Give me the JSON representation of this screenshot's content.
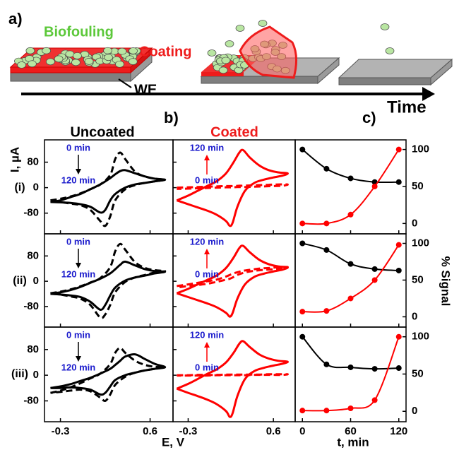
{
  "figure": {
    "panel_a": "a)",
    "panel_b": "b)",
    "panel_c": "c)",
    "biofouling": "Biofouling",
    "coating": "Coating",
    "we": "WE",
    "time": "Time",
    "col_uncoated": "Uncoated",
    "col_coated": "Coated",
    "rows": [
      "(i)",
      "(ii)",
      "(iii)"
    ],
    "y_label_cv": "I, µA",
    "x_label_cv": "E, V",
    "y_label_signal": "% Signal",
    "x_label_signal": "t, min"
  },
  "chart_data": [
    {
      "type": "line",
      "xlim": [
        -0.46,
        0.83
      ],
      "xticks": [
        -0.3,
        0.6
      ],
      "ylim": [
        -145,
        150
      ],
      "yticks": [
        80,
        0,
        -80
      ],
      "annotations": [
        "0 min",
        "120 min"
      ],
      "annotation_color": "#1a1acc",
      "x": [
        -0.4,
        -0.3,
        -0.2,
        -0.1,
        0,
        0.1,
        0.2,
        0.25,
        0.3,
        0.35,
        0.45,
        0.55,
        0.65,
        0.75,
        0.65,
        0.55,
        0.45,
        0.35,
        0.25,
        0.2,
        0.15,
        0.1,
        0,
        -0.1,
        -0.2,
        -0.3,
        -0.4
      ],
      "series": [
        {
          "color": "#000000",
          "style": "solid",
          "values": [
            -45,
            -40,
            -30,
            -20,
            -5,
            10,
            30,
            42,
            52,
            55,
            45,
            35,
            28,
            25,
            20,
            15,
            10,
            0,
            -20,
            -40,
            -70,
            -78,
            -60,
            -52,
            -48,
            -46,
            -45
          ]
        },
        {
          "color": "#000000",
          "style": "dashed",
          "values": [
            -40,
            -35,
            -28,
            -18,
            -5,
            10,
            40,
            90,
            110,
            90,
            50,
            35,
            28,
            25,
            20,
            15,
            8,
            -5,
            -40,
            -90,
            -120,
            -105,
            -70,
            -55,
            -50,
            -45,
            -40
          ]
        }
      ]
    },
    {
      "type": "line",
      "xlim": [
        -0.46,
        0.83
      ],
      "xticks": [
        -0.3,
        0.6
      ],
      "ylim": [
        -145,
        150
      ],
      "yticks": [
        80,
        0,
        -80
      ],
      "annotations": [
        "0 min",
        "120 min"
      ],
      "annotation_color": "#1a1acc",
      "x": [
        -0.42,
        -0.3,
        -0.2,
        -0.1,
        0,
        0.1,
        0.18,
        0.24,
        0.28,
        0.35,
        0.45,
        0.55,
        0.65,
        0.75,
        0.7,
        0.6,
        0.5,
        0.4,
        0.3,
        0.22,
        0.17,
        0.14,
        0.1,
        0,
        -0.1,
        -0.2,
        -0.3,
        -0.42
      ],
      "series": [
        {
          "color": "#ff0000",
          "style": "solid",
          "values": [
            -40,
            -25,
            -10,
            5,
            20,
            45,
            80,
            110,
            118,
            95,
            70,
            55,
            48,
            45,
            38,
            32,
            25,
            15,
            -10,
            -60,
            -110,
            -120,
            -105,
            -85,
            -72,
            -62,
            -52,
            -40
          ]
        },
        {
          "color": "#ff0000",
          "style": "dashed",
          "values": [
            0,
            1,
            2,
            3,
            4,
            5,
            5,
            6,
            6,
            7,
            8,
            9,
            10,
            10,
            6,
            5,
            4,
            3,
            2,
            2,
            1,
            1,
            1,
            0,
            -1,
            -2,
            -3,
            -4
          ]
        }
      ]
    },
    {
      "type": "line",
      "markers": true,
      "xlim": [
        -9,
        129
      ],
      "xticks": [
        0,
        60,
        120
      ],
      "ylim": [
        -14,
        113
      ],
      "yticks": [
        0,
        50,
        100
      ],
      "x": [
        0,
        30,
        60,
        90,
        120
      ],
      "series": [
        {
          "color": "#000000",
          "values": [
            100,
            74,
            61,
            56,
            56
          ]
        },
        {
          "color": "#ff0000",
          "values": [
            0,
            0,
            12,
            50,
            100
          ]
        }
      ]
    },
    {
      "type": "line",
      "xlim": [
        -0.46,
        0.83
      ],
      "xticks": [
        -0.3,
        0.6
      ],
      "ylim": [
        -145,
        150
      ],
      "yticks": [
        80,
        0,
        -80
      ],
      "annotations": [
        "0 min",
        "120 min"
      ],
      "annotation_color": "#1a1acc",
      "x": [
        -0.4,
        -0.3,
        -0.2,
        -0.1,
        0,
        0.1,
        0.2,
        0.25,
        0.3,
        0.35,
        0.45,
        0.55,
        0.65,
        0.75,
        0.65,
        0.55,
        0.45,
        0.35,
        0.25,
        0.2,
        0.15,
        0.1,
        0,
        -0.1,
        -0.2,
        -0.3,
        -0.4
      ],
      "series": [
        {
          "color": "#000000",
          "style": "solid",
          "values": [
            -40,
            -35,
            -28,
            -18,
            -5,
            8,
            25,
            38,
            52,
            62,
            50,
            38,
            32,
            30,
            25,
            18,
            12,
            2,
            -20,
            -45,
            -75,
            -90,
            -65,
            -50,
            -45,
            -42,
            -40
          ]
        },
        {
          "color": "#000000",
          "style": "dashed",
          "values": [
            -38,
            -33,
            -26,
            -16,
            -4,
            10,
            45,
            95,
            118,
            100,
            60,
            42,
            35,
            32,
            28,
            20,
            12,
            -2,
            -35,
            -75,
            -105,
            -115,
            -75,
            -55,
            -48,
            -42,
            -38
          ]
        }
      ]
    },
    {
      "type": "line",
      "xlim": [
        -0.46,
        0.83
      ],
      "xticks": [
        -0.3,
        0.6
      ],
      "ylim": [
        -145,
        150
      ],
      "yticks": [
        80,
        0,
        -80
      ],
      "annotations": [
        "0 min",
        "120 min"
      ],
      "annotation_color": "#1a1acc",
      "x": [
        -0.42,
        -0.3,
        -0.2,
        -0.1,
        0,
        0.1,
        0.18,
        0.24,
        0.28,
        0.35,
        0.45,
        0.55,
        0.65,
        0.75,
        0.7,
        0.6,
        0.5,
        0.4,
        0.3,
        0.22,
        0.17,
        0.14,
        0.1,
        0,
        -0.1,
        -0.2,
        -0.3,
        -0.42
      ],
      "series": [
        {
          "color": "#ff0000",
          "style": "solid",
          "values": [
            -38,
            -24,
            -10,
            4,
            18,
            42,
            75,
            105,
            112,
            92,
            68,
            54,
            47,
            44,
            37,
            31,
            24,
            14,
            -10,
            -55,
            -100,
            -112,
            -100,
            -82,
            -70,
            -60,
            -50,
            -38
          ]
        },
        {
          "color": "#ff0000",
          "style": "dashed",
          "values": [
            -15,
            -10,
            -5,
            0,
            5,
            15,
            25,
            30,
            33,
            36,
            40,
            42,
            44,
            45,
            40,
            38,
            36,
            33,
            28,
            20,
            12,
            8,
            5,
            -2,
            -8,
            -12,
            -15,
            -20
          ]
        }
      ]
    },
    {
      "type": "line",
      "markers": true,
      "xlim": [
        -9,
        129
      ],
      "xticks": [
        0,
        60,
        120
      ],
      "ylim": [
        -14,
        113
      ],
      "yticks": [
        0,
        50,
        100
      ],
      "x": [
        0,
        30,
        60,
        90,
        120
      ],
      "series": [
        {
          "color": "#000000",
          "values": [
            100,
            91,
            72,
            65,
            63
          ]
        },
        {
          "color": "#ff0000",
          "values": [
            7,
            8,
            25,
            50,
            98
          ]
        }
      ]
    },
    {
      "type": "line",
      "xlim": [
        -0.46,
        0.83
      ],
      "xticks": [
        -0.3,
        0.6
      ],
      "ylim": [
        -145,
        150
      ],
      "yticks": [
        80,
        0,
        -80
      ],
      "annotations": [
        "0 min",
        "120 min"
      ],
      "annotation_color": "#1a1acc",
      "x": [
        -0.4,
        -0.3,
        -0.2,
        -0.1,
        0,
        0.1,
        0.2,
        0.25,
        0.3,
        0.35,
        0.45,
        0.55,
        0.65,
        0.75,
        0.65,
        0.55,
        0.45,
        0.35,
        0.25,
        0.2,
        0.15,
        0.1,
        0,
        -0.1,
        -0.2,
        -0.3,
        -0.4
      ],
      "series": [
        {
          "color": "#000000",
          "style": "solid",
          "values": [
            -40,
            -35,
            -28,
            -18,
            -8,
            5,
            20,
            32,
            45,
            58,
            65,
            50,
            35,
            25,
            20,
            15,
            8,
            0,
            -15,
            -35,
            -55,
            -60,
            -45,
            -40,
            -38,
            -40,
            -40
          ]
        },
        {
          "color": "#000000",
          "style": "dashed",
          "values": [
            -55,
            -48,
            -38,
            -25,
            -10,
            5,
            35,
            70,
            85,
            70,
            45,
            32,
            26,
            25,
            20,
            15,
            8,
            -5,
            -30,
            -60,
            -80,
            -70,
            -50,
            -45,
            -48,
            -52,
            -55
          ]
        }
      ]
    },
    {
      "type": "line",
      "xlim": [
        -0.46,
        0.83
      ],
      "xticks": [
        -0.3,
        0.6
      ],
      "ylim": [
        -145,
        150
      ],
      "yticks": [
        80,
        0,
        -80
      ],
      "annotations": [
        "0 min",
        "120 min"
      ],
      "annotation_color": "#1a1acc",
      "x": [
        -0.42,
        -0.3,
        -0.2,
        -0.1,
        0,
        0.1,
        0.18,
        0.24,
        0.28,
        0.35,
        0.45,
        0.55,
        0.65,
        0.75,
        0.7,
        0.6,
        0.5,
        0.4,
        0.3,
        0.22,
        0.17,
        0.14,
        0.1,
        0,
        -0.1,
        -0.2,
        -0.3,
        -0.42
      ],
      "series": [
        {
          "color": "#ff0000",
          "style": "solid",
          "values": [
            -42,
            -27,
            -12,
            4,
            18,
            40,
            70,
            98,
            106,
            88,
            65,
            52,
            45,
            42,
            36,
            30,
            23,
            13,
            -12,
            -65,
            -118,
            -130,
            -112,
            -90,
            -76,
            -65,
            -55,
            -42
          ]
        },
        {
          "color": "#ff0000",
          "style": "dashed",
          "values": [
            0,
            0,
            1,
            1,
            1,
            2,
            2,
            2,
            2,
            2,
            2,
            3,
            3,
            3,
            1,
            1,
            1,
            1,
            0,
            0,
            0,
            0,
            0,
            0,
            -1,
            -1,
            -1,
            -1
          ]
        }
      ]
    },
    {
      "type": "line",
      "markers": true,
      "xlim": [
        -9,
        129
      ],
      "xticks": [
        0,
        60,
        120
      ],
      "ylim": [
        -14,
        113
      ],
      "yticks": [
        0,
        50,
        100
      ],
      "x": [
        0,
        30,
        60,
        90,
        120
      ],
      "series": [
        {
          "color": "#000000",
          "values": [
            100,
            63,
            59,
            57,
            58
          ]
        },
        {
          "color": "#ff0000",
          "values": [
            1,
            1,
            4,
            15,
            100
          ]
        }
      ]
    }
  ]
}
